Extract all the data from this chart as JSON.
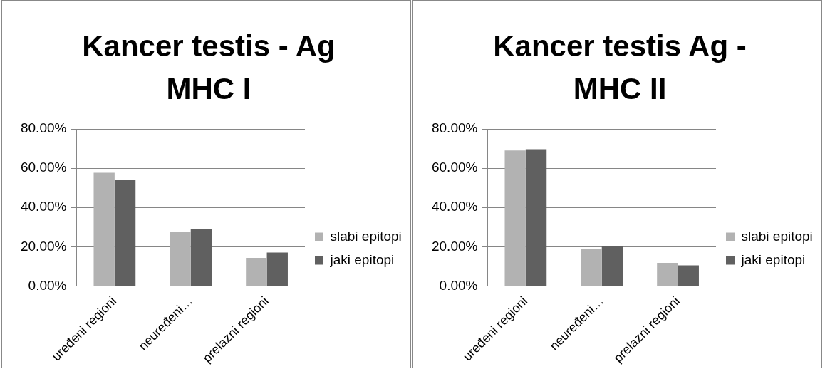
{
  "chart_data": [
    {
      "type": "bar",
      "title": "Kancer testis - Ag MHC I",
      "categories": [
        "uređeni regioni",
        "neuređeni…",
        "prelazni regioni"
      ],
      "series": [
        {
          "name": "slabi epitopi",
          "color": "#b2b2b2",
          "values": [
            57.7,
            27.6,
            14.3
          ]
        },
        {
          "name": "jaki epitopi",
          "color": "#606060",
          "values": [
            53.9,
            29.0,
            17.0
          ]
        }
      ],
      "ylim": [
        0,
        80
      ],
      "yticks": [
        {
          "value": 0,
          "label": "0.00%"
        },
        {
          "value": 20,
          "label": "20.00%"
        },
        {
          "value": 40,
          "label": "40.00%"
        },
        {
          "value": 60,
          "label": "60.00%"
        },
        {
          "value": 80,
          "label": "80.00%"
        }
      ],
      "grid": "y",
      "legend": "right"
    },
    {
      "type": "bar",
      "title": "Kancer testis Ag - MHC II",
      "categories": [
        "uređeni regioni",
        "neuređeni…",
        "prelazni regioni"
      ],
      "series": [
        {
          "name": "slabi epitopi",
          "color": "#b2b2b2",
          "values": [
            69.0,
            19.0,
            11.8
          ]
        },
        {
          "name": "jaki epitopi",
          "color": "#606060",
          "values": [
            69.7,
            20.1,
            10.5
          ]
        }
      ],
      "ylim": [
        0,
        80
      ],
      "yticks": [
        {
          "value": 0,
          "label": "0.00%"
        },
        {
          "value": 20,
          "label": "20.00%"
        },
        {
          "value": 40,
          "label": "40.00%"
        },
        {
          "value": 60,
          "label": "60.00%"
        },
        {
          "value": 80,
          "label": "80.00%"
        }
      ],
      "grid": "y",
      "legend": "right"
    }
  ]
}
